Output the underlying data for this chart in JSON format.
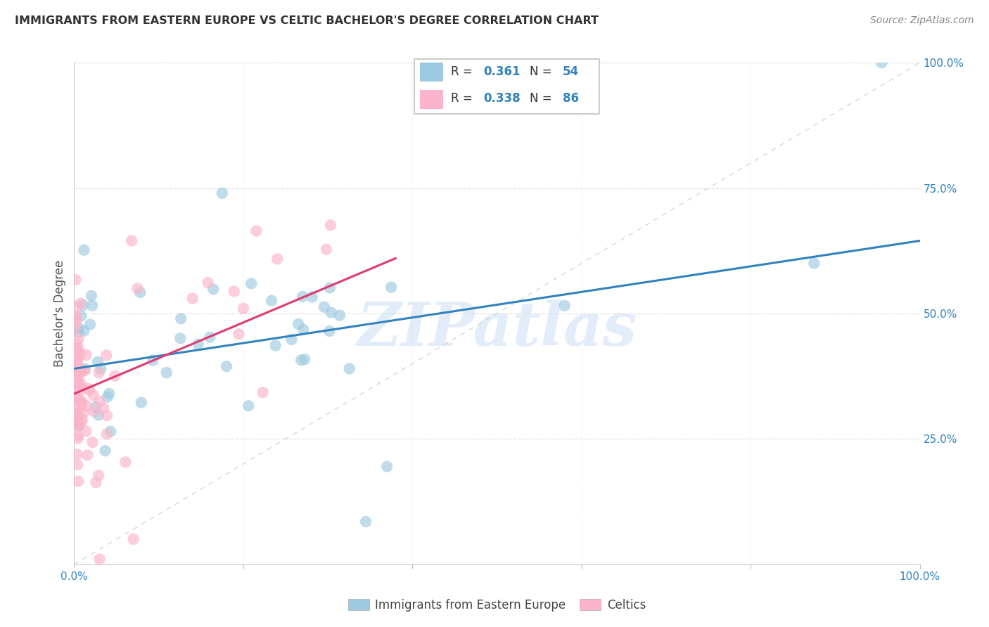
{
  "title": "IMMIGRANTS FROM EASTERN EUROPE VS CELTIC BACHELOR'S DEGREE CORRELATION CHART",
  "source": "Source: ZipAtlas.com",
  "ylabel": "Bachelor's Degree",
  "blue_label": "Immigrants from Eastern Europe",
  "pink_label": "Celtics",
  "blue_R": "0.361",
  "blue_N": "54",
  "pink_R": "0.338",
  "pink_N": "86",
  "blue_color": "#9ecae1",
  "pink_color": "#fbb4c9",
  "blue_line_color": "#3182bd",
  "pink_line_color": "#de3b6e",
  "diag_color": "#cccccc",
  "watermark": "ZIPatlas",
  "watermark_color": "#c8ddf5",
  "xmin": 0.0,
  "xmax": 1.0,
  "ymin": 0.0,
  "ymax": 1.0,
  "title_color": "#333333",
  "source_color": "#888888",
  "tick_color": "#3182bd",
  "grid_color": "#dddddd",
  "ylabel_color": "#555555",
  "legend_text_color": "#333333",
  "blue_trend_x0": 0.0,
  "blue_trend_y0": 0.39,
  "blue_trend_x1": 1.0,
  "blue_trend_y1": 0.645,
  "pink_trend_x0": 0.0,
  "pink_trend_y0": 0.34,
  "pink_trend_x1": 0.38,
  "pink_trend_y1": 0.61
}
